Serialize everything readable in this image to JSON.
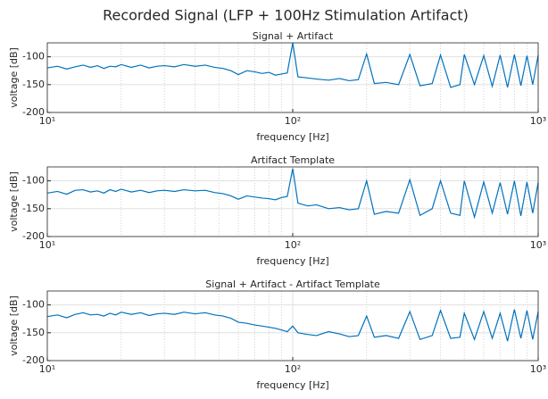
{
  "title": "Recorded Signal (LFP + 100Hz Stimulation Artifact)",
  "chart_data": [
    {
      "type": "line",
      "title": "Signal + Artifact",
      "xlabel": "frequency [Hz]",
      "ylabel": "voltage [dB]",
      "xscale": "log",
      "grid": true,
      "xlim": [
        10,
        1000
      ],
      "ylim": [
        -200,
        -75
      ],
      "xticks": [
        {
          "value": 10,
          "label": "10¹"
        },
        {
          "value": 100,
          "label": "10²"
        },
        {
          "value": 1000,
          "label": "10³"
        }
      ],
      "xminorticks": [
        20,
        30,
        40,
        50,
        60,
        70,
        80,
        90,
        200,
        300,
        400,
        500,
        600,
        700,
        800,
        900
      ],
      "yticks": [
        -200,
        -150,
        -100
      ],
      "x": [
        10,
        11,
        12,
        13,
        14,
        15,
        16,
        17,
        18,
        19,
        20,
        22,
        24,
        26,
        28,
        30,
        33,
        36,
        40,
        44,
        48,
        52,
        56,
        60,
        65,
        70,
        75,
        80,
        85,
        90,
        95,
        100,
        105,
        115,
        125,
        140,
        155,
        170,
        185,
        200,
        215,
        240,
        270,
        300,
        330,
        370,
        400,
        440,
        480,
        500,
        550,
        600,
        650,
        700,
        750,
        800,
        850,
        900,
        950,
        1000
      ],
      "series": [
        {
          "color": "#0072bd",
          "values": [
            -120,
            -117,
            -122,
            -118,
            -115,
            -119,
            -116,
            -121,
            -117,
            -118,
            -114,
            -119,
            -115,
            -120,
            -117,
            -116,
            -118,
            -114,
            -117,
            -115,
            -119,
            -121,
            -125,
            -132,
            -125,
            -127,
            -130,
            -128,
            -133,
            -131,
            -129,
            -75,
            -136,
            -138,
            -140,
            -142,
            -139,
            -143,
            -141,
            -95,
            -148,
            -146,
            -150,
            -96,
            -152,
            -148,
            -97,
            -155,
            -150,
            -96,
            -150,
            -98,
            -153,
            -97,
            -155,
            -96,
            -152,
            -98,
            -150,
            -97
          ]
        }
      ]
    },
    {
      "type": "line",
      "title": "Artifact Template",
      "xlabel": "frequency [Hz]",
      "ylabel": "voltage [dB]",
      "xscale": "log",
      "grid": true,
      "xlim": [
        10,
        1000
      ],
      "ylim": [
        -200,
        -75
      ],
      "xticks": [
        {
          "value": 10,
          "label": "10¹"
        },
        {
          "value": 100,
          "label": "10²"
        },
        {
          "value": 1000,
          "label": "10³"
        }
      ],
      "xminorticks": [
        20,
        30,
        40,
        50,
        60,
        70,
        80,
        90,
        200,
        300,
        400,
        500,
        600,
        700,
        800,
        900
      ],
      "yticks": [
        -200,
        -150,
        -100
      ],
      "x": [
        10,
        11,
        12,
        13,
        14,
        15,
        16,
        17,
        18,
        19,
        20,
        22,
        24,
        26,
        28,
        30,
        33,
        36,
        40,
        44,
        48,
        52,
        56,
        60,
        65,
        70,
        75,
        80,
        85,
        90,
        95,
        100,
        105,
        115,
        125,
        140,
        155,
        170,
        185,
        200,
        215,
        240,
        270,
        300,
        330,
        370,
        400,
        440,
        480,
        500,
        550,
        600,
        650,
        700,
        750,
        800,
        850,
        900,
        950,
        1000
      ],
      "series": [
        {
          "color": "#0072bd",
          "values": [
            -122,
            -119,
            -124,
            -117,
            -116,
            -120,
            -118,
            -122,
            -116,
            -119,
            -115,
            -120,
            -117,
            -121,
            -118,
            -117,
            -119,
            -116,
            -118,
            -117,
            -121,
            -123,
            -127,
            -133,
            -127,
            -129,
            -131,
            -132,
            -134,
            -130,
            -128,
            -78,
            -140,
            -145,
            -143,
            -150,
            -148,
            -152,
            -150,
            -100,
            -160,
            -155,
            -158,
            -98,
            -162,
            -150,
            -100,
            -158,
            -162,
            -100,
            -165,
            -102,
            -158,
            -103,
            -160,
            -100,
            -163,
            -102,
            -158,
            -103
          ]
        }
      ]
    },
    {
      "type": "line",
      "title": "Signal + Artifact - Artifact Template",
      "xlabel": "frequency [Hz]",
      "ylabel": "voltage [dB]",
      "xscale": "log",
      "grid": true,
      "xlim": [
        10,
        1000
      ],
      "ylim": [
        -200,
        -75
      ],
      "xticks": [
        {
          "value": 10,
          "label": "10¹"
        },
        {
          "value": 100,
          "label": "10²"
        },
        {
          "value": 1000,
          "label": "10³"
        }
      ],
      "xminorticks": [
        20,
        30,
        40,
        50,
        60,
        70,
        80,
        90,
        200,
        300,
        400,
        500,
        600,
        700,
        800,
        900
      ],
      "yticks": [
        -200,
        -150,
        -100
      ],
      "x": [
        10,
        11,
        12,
        13,
        14,
        15,
        16,
        17,
        18,
        19,
        20,
        22,
        24,
        26,
        28,
        30,
        33,
        36,
        40,
        44,
        48,
        52,
        56,
        60,
        65,
        70,
        75,
        80,
        85,
        90,
        95,
        100,
        105,
        115,
        125,
        140,
        155,
        170,
        185,
        200,
        215,
        240,
        270,
        300,
        330,
        370,
        400,
        440,
        480,
        500,
        550,
        600,
        650,
        700,
        750,
        800,
        850,
        900,
        950,
        1000
      ],
      "series": [
        {
          "color": "#0072bd",
          "values": [
            -121,
            -118,
            -123,
            -117,
            -114,
            -118,
            -117,
            -120,
            -115,
            -118,
            -113,
            -117,
            -114,
            -119,
            -116,
            -115,
            -117,
            -113,
            -116,
            -114,
            -118,
            -120,
            -124,
            -131,
            -133,
            -136,
            -138,
            -140,
            -142,
            -145,
            -148,
            -138,
            -150,
            -153,
            -155,
            -148,
            -152,
            -157,
            -155,
            -120,
            -158,
            -155,
            -160,
            -112,
            -162,
            -155,
            -110,
            -160,
            -158,
            -115,
            -162,
            -112,
            -160,
            -115,
            -165,
            -108,
            -160,
            -110,
            -162,
            -112
          ]
        }
      ]
    }
  ]
}
